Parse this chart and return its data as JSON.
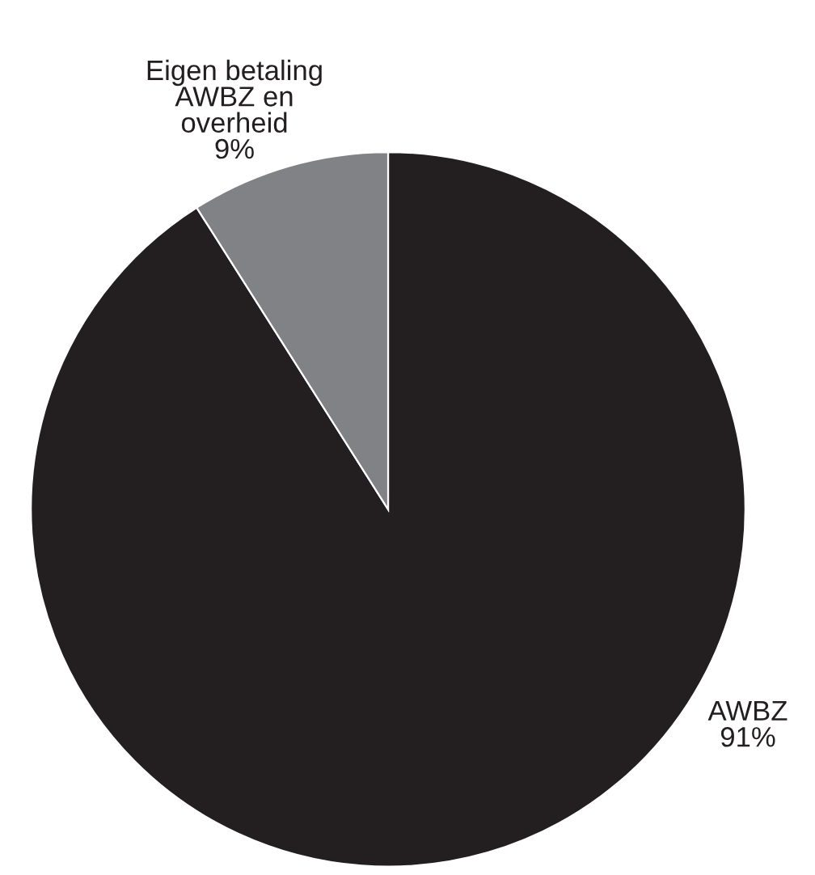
{
  "chart_data": {
    "type": "pie",
    "categories": [
      "AWBZ",
      "Eigen betaling\nAWBZ en\noverheid"
    ],
    "values": [
      91,
      9
    ],
    "value_labels": [
      "91%",
      "9%"
    ],
    "colors": [
      "#231f20",
      "#808285"
    ]
  }
}
